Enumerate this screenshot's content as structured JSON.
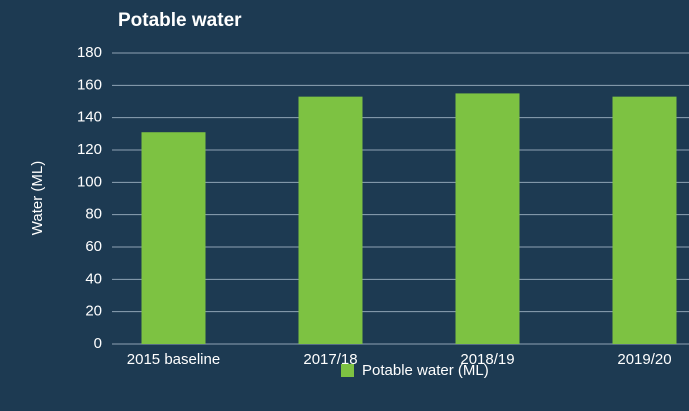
{
  "chart_data": {
    "type": "bar",
    "title": "Potable water",
    "y_label": "Water (ML)",
    "categories": [
      "2015 baseline",
      "2017/18",
      "2018/19",
      "2019/20"
    ],
    "series": [
      {
        "name": "Potable water (ML)",
        "color": "#7dc242",
        "values": [
          131,
          153,
          155,
          153
        ]
      }
    ],
    "ylim": [
      0,
      180
    ],
    "yticks": [
      0,
      20,
      40,
      60,
      80,
      100,
      120,
      140,
      160,
      180
    ],
    "grid": true,
    "legend": "bottom"
  }
}
